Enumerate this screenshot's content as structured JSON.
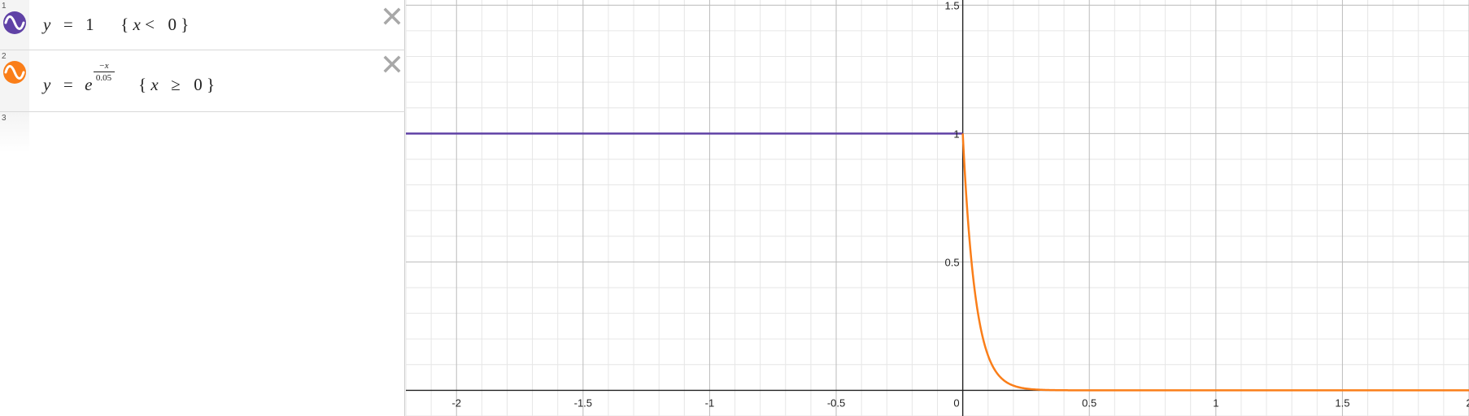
{
  "expressions": [
    {
      "index": "1",
      "color": "#6042a6",
      "icon": "sine-wave-icon",
      "lhs_var": "y",
      "equals": "=",
      "value": "1",
      "cond_open": "{",
      "cond_var": "x",
      "cond_op": "<",
      "cond_val": "0",
      "cond_close": "}"
    },
    {
      "index": "2",
      "color": "#fa7e19",
      "icon": "sine-wave-icon",
      "lhs_var": "y",
      "equals": "=",
      "base": "e",
      "exp_num": "−x",
      "exp_den": "0.05",
      "cond_open": "{",
      "cond_var": "x",
      "cond_op": "≥",
      "cond_val": "0",
      "cond_close": "}"
    },
    {
      "index": "3"
    }
  ],
  "delete_icon": "close-icon",
  "graph": {
    "x_range": [
      -2.2,
      2.0
    ],
    "y_range": [
      -0.1,
      1.52
    ],
    "x_ticks": [
      {
        "v": -2,
        "label": "-2"
      },
      {
        "v": -1.5,
        "label": "-1.5"
      },
      {
        "v": -1,
        "label": "-1"
      },
      {
        "v": -0.5,
        "label": "-0.5"
      },
      {
        "v": 0,
        "label": "0"
      },
      {
        "v": 0.5,
        "label": "0.5"
      },
      {
        "v": 1,
        "label": "1"
      },
      {
        "v": 1.5,
        "label": "1.5"
      },
      {
        "v": 2,
        "label": "2"
      }
    ],
    "y_ticks": [
      {
        "v": 0.5,
        "label": "0.5"
      },
      {
        "v": 1,
        "label": "1"
      },
      {
        "v": 1.5,
        "label": "1.5"
      }
    ],
    "minor_step": 0.1,
    "major_step": 0.5,
    "colors": {
      "axis": "#222222",
      "major_grid": "#bbbbbb",
      "minor_grid": "#e6e6e6",
      "series_1": "#6042a6",
      "series_2": "#fa7e19"
    },
    "curves": [
      {
        "type": "constant",
        "value": 1,
        "domain": "x < 0"
      },
      {
        "type": "exp_decay",
        "scale": 0.05,
        "domain": "x >= 0"
      }
    ]
  }
}
